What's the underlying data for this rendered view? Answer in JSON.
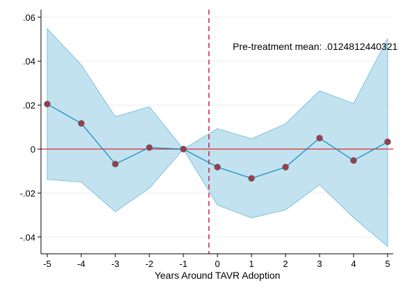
{
  "chart_data": {
    "type": "line",
    "xlabel": "Years Around TAVR Adoption",
    "ylabel": "",
    "annotation": "Pre-treatment mean: .0124812440321",
    "x": [
      -5,
      -4,
      -3,
      -2,
      -1,
      0,
      1,
      2,
      3,
      4,
      5
    ],
    "xticks": [
      "-5",
      "-4",
      "-3",
      "-2",
      "-1",
      "0",
      "1",
      "2",
      "3",
      "4",
      "5"
    ],
    "yticks": [
      0.06,
      0.04,
      0.02,
      0,
      -0.02,
      -0.04
    ],
    "ytick_labels": [
      ".06",
      ".04",
      ".02",
      "0",
      "-.02",
      "-.04"
    ],
    "ylim": [
      -0.047,
      0.063
    ],
    "xlim": [
      -5.2,
      5.2
    ],
    "series": [
      {
        "values": [
          0.0205,
          0.0117,
          -0.0068,
          0.0007,
          0.0,
          -0.0082,
          -0.0133,
          -0.0082,
          0.005,
          -0.0052,
          0.0033
        ],
        "ci_lower": [
          -0.0138,
          -0.015,
          -0.0285,
          -0.0178,
          0.0,
          -0.0255,
          -0.0313,
          -0.0277,
          -0.0162,
          -0.0312,
          -0.0443
        ],
        "ci_upper": [
          0.0547,
          0.0383,
          0.0147,
          0.0193,
          0.0,
          0.0093,
          0.0047,
          0.0115,
          0.0265,
          0.0207,
          0.0503
        ]
      }
    ],
    "reference_lines": {
      "horizontal_y": 0,
      "vertical_x": -0.25
    },
    "colors": {
      "ci_fill": "#c3e2ef",
      "ci_edge": "#7fc1dc",
      "line": "#1a8fc4",
      "marker": "#9b3d4a",
      "hline": "#d62b2b",
      "vline": "#c8103d",
      "grid": "#e8eef2"
    },
    "grid": true,
    "legend": "none"
  }
}
